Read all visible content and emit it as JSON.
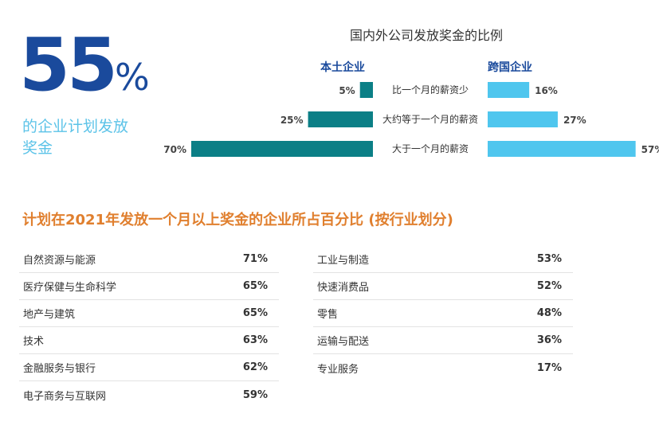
{
  "headline": {
    "number": "55",
    "unit": "%",
    "caption": "的企业计划发放奖金"
  },
  "chart_data": [
    {
      "type": "bar",
      "title": "国内外公司发放奖金的比例",
      "categories": [
        "比一个月的薪资少",
        "大约等于一个月的薪资",
        "大于一个月的薪资"
      ],
      "series": [
        {
          "name": "本土企业",
          "values": [
            5,
            25,
            70
          ],
          "labels": [
            "5%",
            "25%",
            "70%"
          ],
          "color": "#0b7f86"
        },
        {
          "name": "跨国企业",
          "values": [
            16,
            27,
            57
          ],
          "labels": [
            "16%",
            "27%",
            "57%"
          ],
          "color": "#4fc6ee"
        }
      ],
      "xlim": [
        0,
        100
      ]
    },
    {
      "type": "table",
      "title": "计划在2021年发放一个月以上奖金的企业所占百分比 (按行业划分)",
      "rows_left": [
        {
          "industry": "自然资源与能源",
          "value": "71%"
        },
        {
          "industry": "医疗保健与生命科学",
          "value": "65%"
        },
        {
          "industry": "地产与建筑",
          "value": "65%"
        },
        {
          "industry": "技术",
          "value": "63%"
        },
        {
          "industry": "金融服务与银行",
          "value": "62%"
        },
        {
          "industry": "电子商务与互联网",
          "value": "59%"
        }
      ],
      "rows_right": [
        {
          "industry": "工业与制造",
          "value": "53%"
        },
        {
          "industry": "快速消费品",
          "value": "52%"
        },
        {
          "industry": "零售",
          "value": "48%"
        },
        {
          "industry": "运输与配送",
          "value": "36%"
        },
        {
          "industry": "专业服务",
          "value": "17%"
        }
      ]
    }
  ]
}
